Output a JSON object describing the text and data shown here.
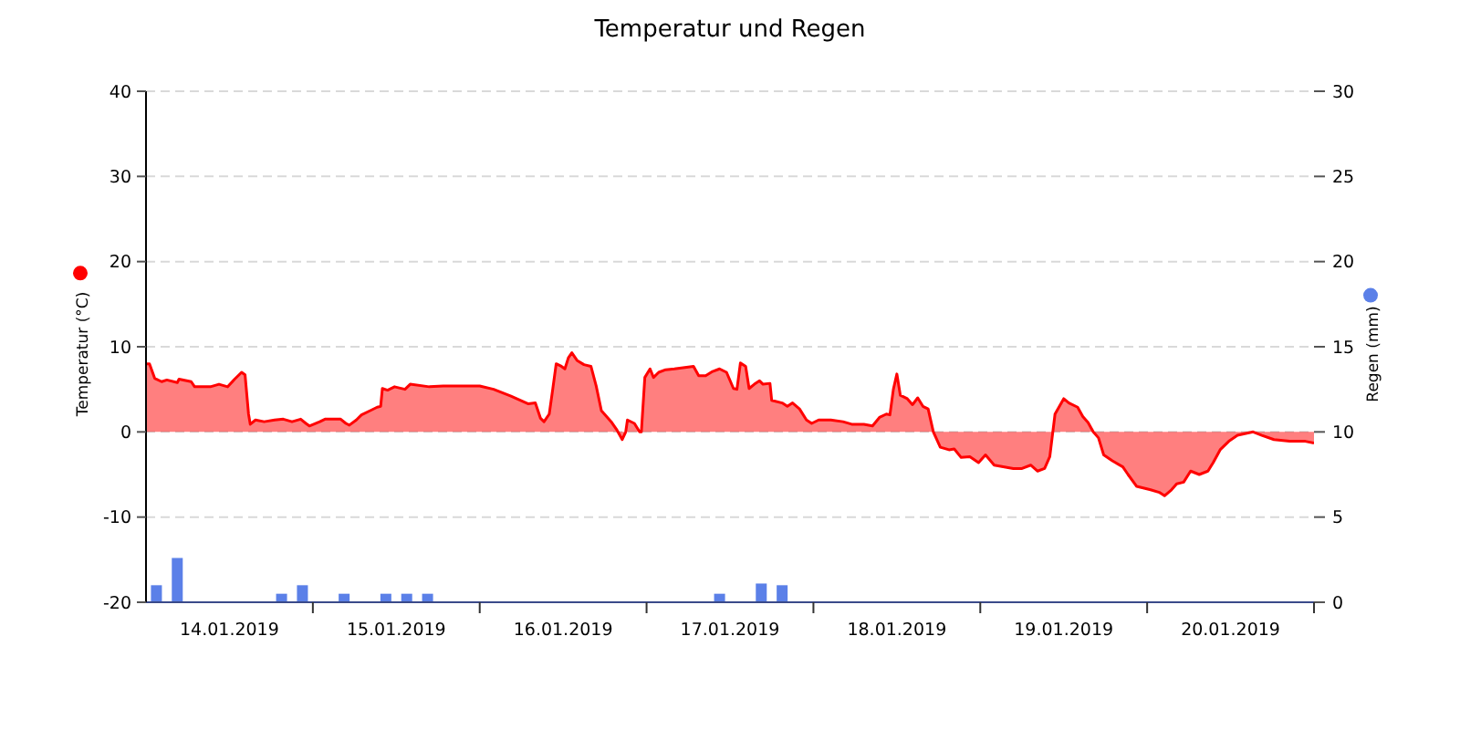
{
  "chart_data": {
    "type": "area",
    "title": "Temperatur und Regen",
    "ylabel": "Temperatur (°C)",
    "y2label": "Regen (mm)",
    "xlim": [
      "2019-01-14T00:00",
      "2019-01-21T00:00"
    ],
    "xticks": [
      {
        "value": "2019-01-14T12:00",
        "label": "14.01.2019"
      },
      {
        "value": "2019-01-15T00:00",
        "label": null
      },
      {
        "value": "2019-01-15T12:00",
        "label": "15.01.2019"
      },
      {
        "value": "2019-01-16T00:00",
        "label": null
      },
      {
        "value": "2019-01-16T12:00",
        "label": "16.01.2019"
      },
      {
        "value": "2019-01-17T00:00",
        "label": null
      },
      {
        "value": "2019-01-17T12:00",
        "label": "17.01.2019"
      },
      {
        "value": "2019-01-18T00:00",
        "label": null
      },
      {
        "value": "2019-01-18T12:00",
        "label": "18.01.2019"
      },
      {
        "value": "2019-01-19T00:00",
        "label": null
      },
      {
        "value": "2019-01-19T12:00",
        "label": "19.01.2019"
      },
      {
        "value": "2019-01-20T00:00",
        "label": null
      },
      {
        "value": "2019-01-20T12:00",
        "label": "20.01.2019"
      },
      {
        "value": "2019-01-21T00:00",
        "label": null
      }
    ],
    "ylim": [
      -20,
      40
    ],
    "yticks": [
      -20,
      -10,
      0,
      10,
      20,
      30,
      40
    ],
    "y2lim": [
      0,
      30
    ],
    "y2ticks": [
      0,
      5,
      10,
      15,
      20,
      25,
      30
    ],
    "grid": "y",
    "legend": false,
    "series": [
      {
        "color": "#ff0000",
        "x": [
          "2019-01-14T00:00",
          "2019-01-14T00:30",
          "2019-01-14T01:15",
          "2019-01-14T02:15",
          "2019-01-14T03:00",
          "2019-01-14T04:30",
          "2019-01-14T04:45",
          "2019-01-14T06:30",
          "2019-01-14T07:00",
          "2019-01-14T09:15",
          "2019-01-14T10:30",
          "2019-01-14T11:45",
          "2019-01-14T12:45",
          "2019-01-14T13:45",
          "2019-01-14T14:15",
          "2019-01-14T14:45",
          "2019-01-14T15:00",
          "2019-01-14T15:45",
          "2019-01-14T17:00",
          "2019-01-14T18:30",
          "2019-01-14T19:45",
          "2019-01-14T21:00",
          "2019-01-14T22:15",
          "2019-01-14T23:00",
          "2019-01-14T23:30",
          "2019-01-15T01:00",
          "2019-01-15T01:45",
          "2019-01-15T04:00",
          "2019-01-15T04:45",
          "2019-01-15T05:15",
          "2019-01-15T06:15",
          "2019-01-15T07:00",
          "2019-01-15T08:15",
          "2019-01-15T09:15",
          "2019-01-15T09:45",
          "2019-01-15T10:00",
          "2019-01-15T10:45",
          "2019-01-15T11:45",
          "2019-01-15T13:15",
          "2019-01-15T14:00",
          "2019-01-15T16:45",
          "2019-01-15T18:45",
          "2019-01-16T00:00",
          "2019-01-16T02:00",
          "2019-01-16T04:30",
          "2019-01-16T07:00",
          "2019-01-16T08:00",
          "2019-01-16T08:45",
          "2019-01-16T09:15",
          "2019-01-16T10:00",
          "2019-01-16T10:30",
          "2019-01-16T11:00",
          "2019-01-16T11:45",
          "2019-01-16T12:15",
          "2019-01-16T12:45",
          "2019-01-16T13:15",
          "2019-01-16T14:00",
          "2019-01-16T15:00",
          "2019-01-16T16:00",
          "2019-01-16T16:45",
          "2019-01-16T17:30",
          "2019-01-16T19:00",
          "2019-01-16T19:45",
          "2019-01-16T20:30",
          "2019-01-16T21:00",
          "2019-01-16T21:15",
          "2019-01-16T22:15",
          "2019-01-16T23:00",
          "2019-01-16T23:15",
          "2019-01-16T23:45",
          "2019-01-17T00:30",
          "2019-01-17T01:00",
          "2019-01-17T01:45",
          "2019-01-17T02:45",
          "2019-01-17T04:00",
          "2019-01-17T05:45",
          "2019-01-17T06:45",
          "2019-01-17T07:30",
          "2019-01-17T08:30",
          "2019-01-17T09:30",
          "2019-01-17T10:30",
          "2019-01-17T11:30",
          "2019-01-17T12:30",
          "2019-01-17T13:00",
          "2019-01-17T13:30",
          "2019-01-17T14:15",
          "2019-01-17T14:45",
          "2019-01-17T15:30",
          "2019-01-17T16:15",
          "2019-01-17T16:45",
          "2019-01-17T17:45",
          "2019-01-17T18:00",
          "2019-01-17T19:30",
          "2019-01-17T20:15",
          "2019-01-17T21:00",
          "2019-01-17T22:00",
          "2019-01-17T23:00",
          "2019-01-17T23:45",
          "2019-01-18T00:45",
          "2019-01-18T02:30",
          "2019-01-18T04:15",
          "2019-01-18T05:30",
          "2019-01-18T07:15",
          "2019-01-18T08:30",
          "2019-01-18T09:30",
          "2019-01-18T10:30",
          "2019-01-18T11:00",
          "2019-01-18T11:30",
          "2019-01-18T12:00",
          "2019-01-18T12:30",
          "2019-01-18T13:30",
          "2019-01-18T14:15",
          "2019-01-18T15:00",
          "2019-01-18T15:45",
          "2019-01-18T16:30",
          "2019-01-18T17:15",
          "2019-01-18T18:15",
          "2019-01-18T19:30",
          "2019-01-18T20:15",
          "2019-01-18T21:15",
          "2019-01-18T22:30",
          "2019-01-18T23:45",
          "2019-01-19T00:45",
          "2019-01-19T02:00",
          "2019-01-19T04:45",
          "2019-01-19T06:00",
          "2019-01-19T07:15",
          "2019-01-19T08:15",
          "2019-01-19T09:15",
          "2019-01-19T10:00",
          "2019-01-19T10:45",
          "2019-01-19T12:00",
          "2019-01-19T12:45",
          "2019-01-19T14:00",
          "2019-01-19T14:45",
          "2019-01-19T15:30",
          "2019-01-19T16:15",
          "2019-01-19T17:00",
          "2019-01-19T17:45",
          "2019-01-19T19:00",
          "2019-01-19T20:30",
          "2019-01-19T21:15",
          "2019-01-19T22:30",
          "2019-01-20T00:30",
          "2019-01-20T01:45",
          "2019-01-20T02:30",
          "2019-01-20T03:30",
          "2019-01-20T04:15",
          "2019-01-20T05:15",
          "2019-01-20T06:15",
          "2019-01-20T07:30",
          "2019-01-20T08:45",
          "2019-01-20T09:30",
          "2019-01-20T10:30",
          "2019-01-20T11:45",
          "2019-01-20T13:00",
          "2019-01-20T15:15",
          "2019-01-20T16:30",
          "2019-01-20T18:15",
          "2019-01-20T20:30",
          "2019-01-20T22:45",
          "2019-01-21T00:00"
        ],
        "values": [
          8,
          8,
          6.3,
          5.9,
          6.1,
          5.8,
          6.2,
          5.9,
          5.3,
          5.3,
          5.6,
          5.3,
          6.2,
          7,
          6.7,
          2.1,
          0.9,
          1.4,
          1.2,
          1.4,
          1.5,
          1.2,
          1.5,
          1,
          0.7,
          1.2,
          1.5,
          1.5,
          1,
          0.8,
          1.4,
          2,
          2.5,
          2.9,
          3,
          5.1,
          4.9,
          5.3,
          5,
          5.6,
          5.3,
          5.4,
          5.4,
          5,
          4.2,
          3.3,
          3.4,
          1.6,
          1.2,
          2.1,
          5,
          8,
          7.7,
          7.4,
          8.7,
          9.3,
          8.4,
          7.9,
          7.7,
          5.4,
          2.5,
          1.1,
          0.2,
          -0.9,
          0,
          1.4,
          1,
          0,
          0,
          6.4,
          7.4,
          6.4,
          7,
          7.3,
          7.4,
          7.6,
          7.7,
          6.6,
          6.6,
          7.1,
          7.4,
          7,
          5.1,
          5,
          8.1,
          7.7,
          5.1,
          5.6,
          6,
          5.6,
          5.7,
          3.7,
          3.4,
          3,
          3.4,
          2.7,
          1.4,
          1,
          1.4,
          1.4,
          1.2,
          0.9,
          0.9,
          0.7,
          1.7,
          2.1,
          2,
          5,
          6.8,
          4.3,
          3.9,
          3.2,
          4,
          3,
          2.7,
          0,
          -1.8,
          -2.1,
          -2,
          -3,
          -2.9,
          -3.6,
          -2.7,
          -3.9,
          -4.3,
          -4.3,
          -3.9,
          -4.6,
          -4.3,
          -2.9,
          2.1,
          3.9,
          3.4,
          2.9,
          1.8,
          1.1,
          0,
          -0.7,
          -2.7,
          -3.4,
          -4.1,
          -5,
          -6.4,
          -6.8,
          -7.1,
          -7.5,
          -6.8,
          -6.1,
          -5.9,
          -4.6,
          -5,
          -4.6,
          -3.6,
          -2.1,
          -1.1,
          -0.4,
          0,
          -0.4,
          -0.9,
          -1.1,
          -1.1,
          -1.3
        ]
      },
      {
        "type": "bar",
        "axis": "y2",
        "color": "#5b80e8",
        "x": [
          "2019-01-14T01:30",
          "2019-01-14T04:30",
          "2019-01-14T19:30",
          "2019-01-14T22:30",
          "2019-01-15T04:30",
          "2019-01-15T10:30",
          "2019-01-15T13:30",
          "2019-01-15T16:30",
          "2019-01-17T10:30",
          "2019-01-17T16:30",
          "2019-01-17T19:30"
        ],
        "values": [
          1,
          2.6,
          0.5,
          1,
          0.5,
          0.5,
          0.5,
          0.5,
          0.5,
          1.1,
          1
        ]
      }
    ]
  }
}
